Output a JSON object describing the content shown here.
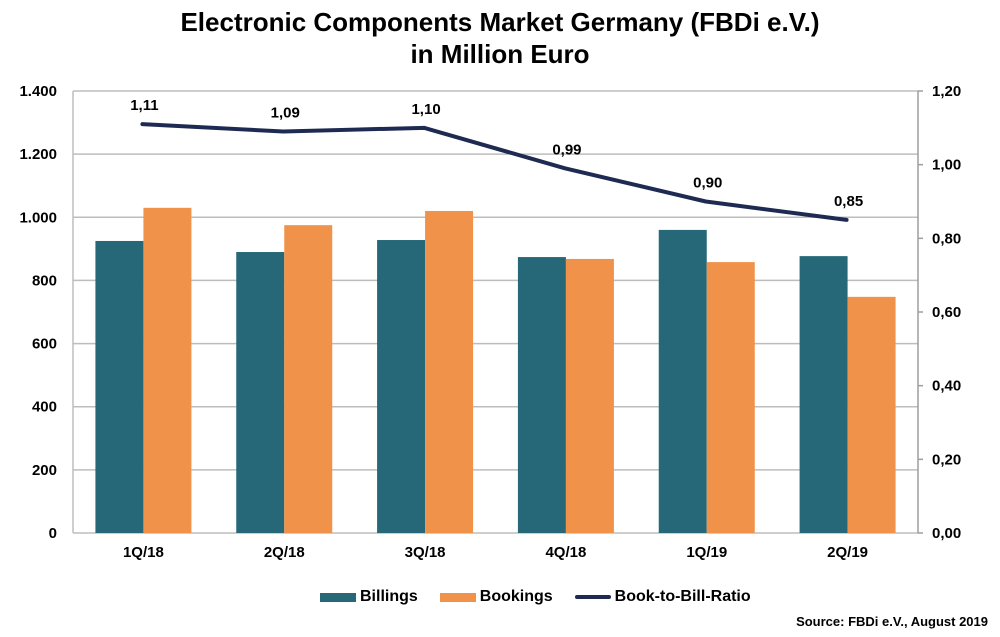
{
  "chart_data": {
    "type": "bar",
    "title": "Electronic Components Market Germany (FBDi e.V.)",
    "subtitle": "in Million Euro",
    "categories": [
      "1Q/18",
      "2Q/18",
      "3Q/18",
      "4Q/18",
      "1Q/19",
      "2Q/19"
    ],
    "series": [
      {
        "name": "Billings",
        "type": "bar",
        "axis": "left",
        "color": "#276878",
        "values": [
          925,
          890,
          928,
          874,
          960,
          877
        ]
      },
      {
        "name": "Bookings",
        "type": "bar",
        "axis": "left",
        "color": "#F0924A",
        "values": [
          1030,
          975,
          1020,
          868,
          858,
          748
        ]
      },
      {
        "name": "Book-to-Bill-Ratio",
        "type": "line",
        "axis": "right",
        "color": "#1F2A52",
        "values": [
          1.11,
          1.09,
          1.1,
          0.99,
          0.9,
          0.85
        ],
        "labels": [
          "1,11",
          "1,09",
          "1,10",
          "0,99",
          "0,90",
          "0,85"
        ]
      }
    ],
    "y_left": {
      "range": [
        0,
        1400
      ],
      "ticks": [
        0,
        200,
        400,
        600,
        800,
        1000,
        1200,
        1400
      ],
      "tick_labels": [
        "0",
        "200",
        "400",
        "600",
        "800",
        "1.000",
        "1.200",
        "1.400"
      ]
    },
    "y_right": {
      "range": [
        0,
        1.2
      ],
      "ticks": [
        0,
        0.2,
        0.4,
        0.6,
        0.8,
        1.0,
        1.2
      ],
      "tick_labels": [
        "0,00",
        "0,20",
        "0,40",
        "0,60",
        "0,80",
        "1,00",
        "1,20"
      ]
    },
    "xlabel": "",
    "grid": true,
    "legend": {
      "position": "bottom",
      "entries": [
        "Billings",
        "Bookings",
        "Book-to-Bill-Ratio"
      ]
    },
    "source": "Source: FBDi e.V., August 2019"
  }
}
